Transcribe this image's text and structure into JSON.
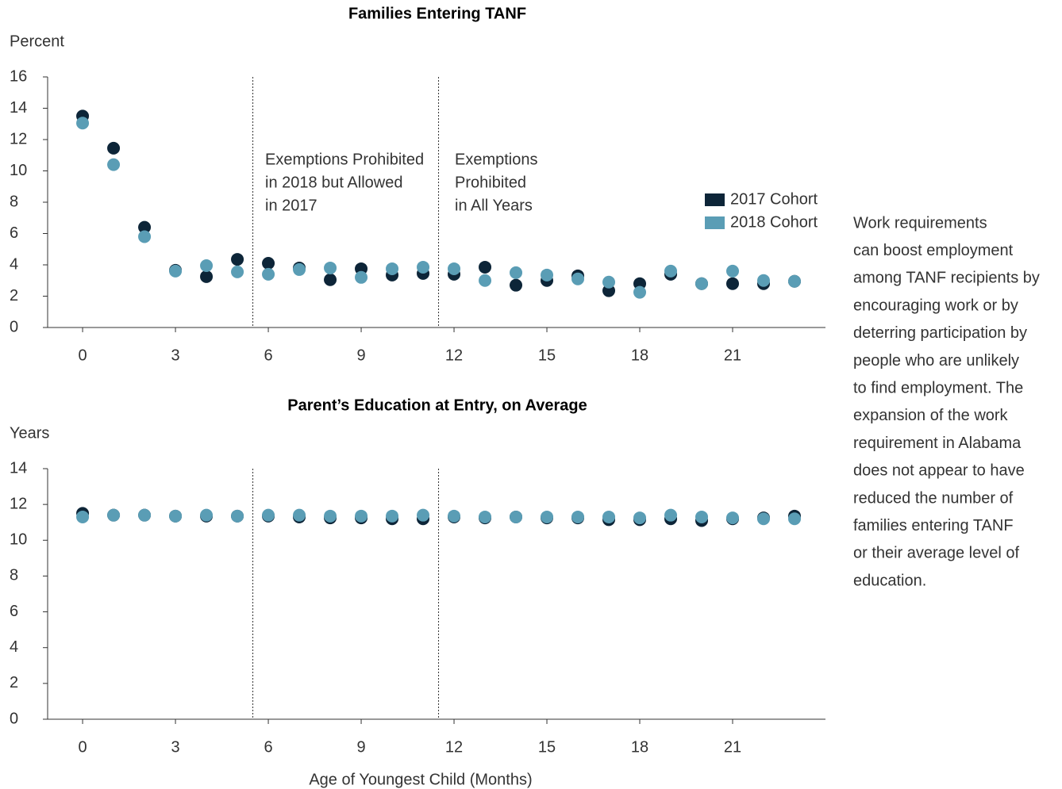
{
  "chart_data": [
    {
      "type": "scatter",
      "title": "Families Entering TANF",
      "y_label": "Percent",
      "x": [
        0,
        1,
        2,
        3,
        4,
        5,
        6,
        7,
        8,
        9,
        10,
        11,
        12,
        13,
        14,
        15,
        16,
        17,
        18,
        19,
        20,
        21,
        22,
        23
      ],
      "series": [
        {
          "name": "2017 Cohort",
          "color": "#0d2538",
          "values": [
            13.5,
            11.45,
            6.4,
            3.65,
            3.25,
            4.35,
            4.1,
            3.8,
            3.05,
            3.75,
            3.35,
            3.45,
            3.4,
            3.85,
            2.7,
            3.0,
            3.3,
            2.35,
            2.8,
            3.4,
            2.8,
            2.8,
            2.8,
            2.95
          ]
        },
        {
          "name": "2018 Cohort",
          "color": "#5a9db5",
          "values": [
            13.05,
            10.4,
            5.8,
            3.6,
            3.95,
            3.55,
            3.4,
            3.7,
            3.8,
            3.2,
            3.75,
            3.85,
            3.75,
            3.0,
            3.5,
            3.35,
            3.1,
            2.9,
            2.25,
            3.6,
            2.8,
            3.6,
            3.0,
            2.95
          ]
        }
      ],
      "xlim": [
        -1.13,
        24
      ],
      "ylim": [
        0,
        16
      ],
      "xticks": [
        0,
        3,
        6,
        9,
        12,
        15,
        18,
        21
      ],
      "yticks": [
        0,
        2,
        4,
        6,
        8,
        10,
        12,
        14,
        16
      ],
      "vlines": [
        5.5,
        11.5
      ],
      "legend": "top-right",
      "annotations": [
        {
          "lines": [
            "Exemptions Prohibited",
            "in 2018 but Allowed",
            "in 2017"
          ],
          "color": "#5a9db5"
        },
        {
          "lines": [
            "Exemptions",
            "Prohibited",
            "in All Years"
          ],
          "color": "#0d2538"
        }
      ]
    },
    {
      "type": "scatter",
      "title": "Parent’s Education at Entry, on Average",
      "y_label": "Years",
      "x_label": "Age of Youngest Child (Months)",
      "x": [
        0,
        1,
        2,
        3,
        4,
        5,
        6,
        7,
        8,
        9,
        10,
        11,
        12,
        13,
        14,
        15,
        16,
        17,
        18,
        19,
        20,
        21,
        22,
        23
      ],
      "series": [
        {
          "name": "2017 Cohort",
          "color": "#0d2538",
          "values": [
            11.5,
            11.4,
            11.4,
            11.35,
            11.35,
            11.35,
            11.35,
            11.3,
            11.25,
            11.25,
            11.2,
            11.2,
            11.3,
            11.25,
            11.3,
            11.25,
            11.25,
            11.15,
            11.15,
            11.2,
            11.1,
            11.2,
            11.25,
            11.35
          ]
        },
        {
          "name": "2018 Cohort",
          "color": "#5a9db5",
          "values": [
            11.3,
            11.4,
            11.4,
            11.35,
            11.4,
            11.35,
            11.4,
            11.4,
            11.35,
            11.35,
            11.35,
            11.4,
            11.35,
            11.3,
            11.3,
            11.3,
            11.3,
            11.3,
            11.25,
            11.4,
            11.3,
            11.25,
            11.2,
            11.2
          ]
        }
      ],
      "xlim": [
        -1.13,
        24
      ],
      "ylim": [
        0,
        14
      ],
      "xticks": [
        0,
        3,
        6,
        9,
        12,
        15,
        18,
        21
      ],
      "yticks": [
        0,
        2,
        4,
        6,
        8,
        10,
        12,
        14
      ],
      "vlines": [
        5.5,
        11.5
      ]
    }
  ],
  "note": {
    "lines": [
      "Work requirements",
      "can boost employment",
      "among TANF recipients by",
      "encouraging work or by",
      "deterring participation by",
      "people who are unlikely",
      "to find employment. The",
      "expansion of the work",
      "requirement in Alabama",
      "does not appear to have",
      "reduced the number of",
      "families entering TANF",
      "or their average level of",
      "education."
    ]
  }
}
